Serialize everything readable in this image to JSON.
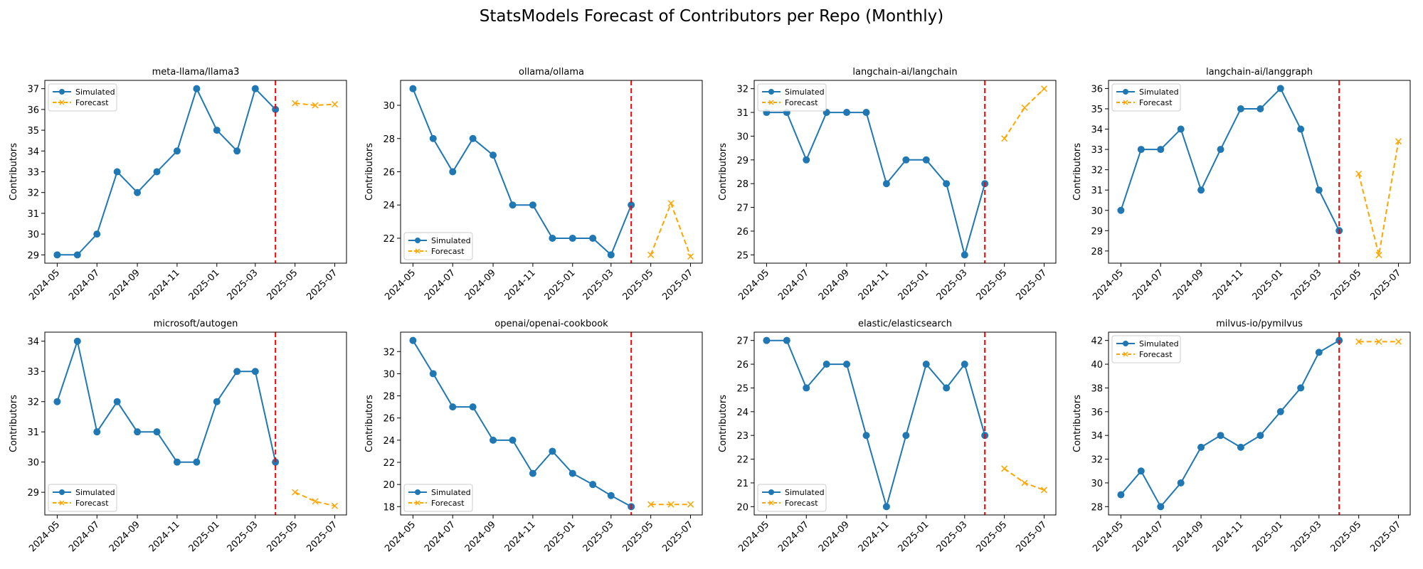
{
  "figure": {
    "title": "StatsModels Forecast of Contributors per Repo (Monthly)"
  },
  "chart_data": [
    {
      "type": "line",
      "title": "meta-llama/llama3",
      "ylabel": "Contributors",
      "ylim": [
        28.6,
        37.4
      ],
      "yticks": [
        29,
        30,
        31,
        32,
        33,
        34,
        35,
        36,
        37
      ],
      "legend_position": "upper-left",
      "series": [
        {
          "name": "Simulated",
          "color": "#1f77b4",
          "marker": "circle",
          "linestyle": "solid",
          "x": [
            "2024-05",
            "2024-06",
            "2024-07",
            "2024-08",
            "2024-09",
            "2024-10",
            "2024-11",
            "2024-12",
            "2025-01",
            "2025-02",
            "2025-03",
            "2025-04"
          ],
          "values": [
            29,
            29,
            30,
            33,
            32,
            33,
            34,
            37,
            35,
            34,
            37,
            36
          ]
        },
        {
          "name": "Forecast",
          "color": "#ffa500",
          "marker": "x",
          "linestyle": "dashed",
          "x": [
            "2025-05",
            "2025-06",
            "2025-07"
          ],
          "values": [
            36.3,
            36.2,
            36.25
          ]
        }
      ],
      "vline": {
        "x": "2025-04",
        "color": "#ff0000"
      }
    },
    {
      "type": "line",
      "title": "ollama/ollama",
      "ylabel": "Contributors",
      "ylim": [
        20.5,
        31.5
      ],
      "yticks": [
        22,
        24,
        26,
        28,
        30
      ],
      "legend_position": "lower-left",
      "series": [
        {
          "name": "Simulated",
          "color": "#1f77b4",
          "marker": "circle",
          "linestyle": "solid",
          "x": [
            "2024-05",
            "2024-06",
            "2024-07",
            "2024-08",
            "2024-09",
            "2024-10",
            "2024-11",
            "2024-12",
            "2025-01",
            "2025-02",
            "2025-03",
            "2025-04"
          ],
          "values": [
            31,
            28,
            26,
            28,
            27,
            24,
            24,
            22,
            22,
            22,
            21,
            24
          ]
        },
        {
          "name": "Forecast",
          "color": "#ffa500",
          "marker": "x",
          "linestyle": "dashed",
          "x": [
            "2025-05",
            "2025-06",
            "2025-07"
          ],
          "values": [
            21,
            24.1,
            20.9
          ]
        }
      ],
      "vline": {
        "x": "2025-04",
        "color": "#ff0000"
      }
    },
    {
      "type": "line",
      "title": "langchain-ai/langchain",
      "ylabel": "Contributors",
      "ylim": [
        24.65,
        32.35
      ],
      "yticks": [
        25,
        26,
        27,
        28,
        29,
        30,
        31,
        32
      ],
      "legend_position": "upper-left",
      "series": [
        {
          "name": "Simulated",
          "color": "#1f77b4",
          "marker": "circle",
          "linestyle": "solid",
          "x": [
            "2024-05",
            "2024-06",
            "2024-07",
            "2024-08",
            "2024-09",
            "2024-10",
            "2024-11",
            "2024-12",
            "2025-01",
            "2025-02",
            "2025-03",
            "2025-04"
          ],
          "values": [
            31,
            31,
            29,
            31,
            31,
            31,
            28,
            29,
            29,
            28,
            25,
            28
          ]
        },
        {
          "name": "Forecast",
          "color": "#ffa500",
          "marker": "x",
          "linestyle": "dashed",
          "x": [
            "2025-05",
            "2025-06",
            "2025-07"
          ],
          "values": [
            29.9,
            31.2,
            32
          ]
        }
      ],
      "vline": {
        "x": "2025-04",
        "color": "#ff0000"
      }
    },
    {
      "type": "line",
      "title": "langchain-ai/langgraph",
      "ylabel": "Contributors",
      "ylim": [
        27.4,
        36.4
      ],
      "yticks": [
        28,
        29,
        30,
        31,
        32,
        33,
        34,
        35,
        36
      ],
      "legend_position": "upper-left",
      "series": [
        {
          "name": "Simulated",
          "color": "#1f77b4",
          "marker": "circle",
          "linestyle": "solid",
          "x": [
            "2024-05",
            "2024-06",
            "2024-07",
            "2024-08",
            "2024-09",
            "2024-10",
            "2024-11",
            "2024-12",
            "2025-01",
            "2025-02",
            "2025-03",
            "2025-04"
          ],
          "values": [
            30,
            33,
            33,
            34,
            31,
            33,
            35,
            35,
            36,
            34,
            31,
            29
          ]
        },
        {
          "name": "Forecast",
          "color": "#ffa500",
          "marker": "x",
          "linestyle": "dashed",
          "x": [
            "2025-05",
            "2025-06",
            "2025-07"
          ],
          "values": [
            31.8,
            27.8,
            33.4
          ]
        }
      ],
      "vline": {
        "x": "2025-04",
        "color": "#ff0000"
      }
    },
    {
      "type": "line",
      "title": "microsoft/autogen",
      "ylabel": "Contributors",
      "ylim": [
        28.25,
        34.3
      ],
      "yticks": [
        29,
        30,
        31,
        32,
        33,
        34
      ],
      "legend_position": "lower-left",
      "series": [
        {
          "name": "Simulated",
          "color": "#1f77b4",
          "marker": "circle",
          "linestyle": "solid",
          "x": [
            "2024-05",
            "2024-06",
            "2024-07",
            "2024-08",
            "2024-09",
            "2024-10",
            "2024-11",
            "2024-12",
            "2025-01",
            "2025-02",
            "2025-03",
            "2025-04"
          ],
          "values": [
            32,
            34,
            31,
            32,
            31,
            31,
            30,
            30,
            32,
            33,
            33,
            30
          ]
        },
        {
          "name": "Forecast",
          "color": "#ffa500",
          "marker": "x",
          "linestyle": "dashed",
          "x": [
            "2025-05",
            "2025-06",
            "2025-07"
          ],
          "values": [
            29,
            28.7,
            28.55
          ]
        }
      ],
      "vline": {
        "x": "2025-04",
        "color": "#ff0000"
      }
    },
    {
      "type": "line",
      "title": "openai/openai-cookbook",
      "ylabel": "Contributors",
      "ylim": [
        17.25,
        33.75
      ],
      "yticks": [
        18,
        20,
        22,
        24,
        26,
        28,
        30,
        32
      ],
      "legend_position": "lower-left",
      "series": [
        {
          "name": "Simulated",
          "color": "#1f77b4",
          "marker": "circle",
          "linestyle": "solid",
          "x": [
            "2024-05",
            "2024-06",
            "2024-07",
            "2024-08",
            "2024-09",
            "2024-10",
            "2024-11",
            "2024-12",
            "2025-01",
            "2025-02",
            "2025-03",
            "2025-04"
          ],
          "values": [
            33,
            30,
            27,
            27,
            24,
            24,
            21,
            23,
            21,
            20,
            19,
            18
          ]
        },
        {
          "name": "Forecast",
          "color": "#ffa500",
          "marker": "x",
          "linestyle": "dashed",
          "x": [
            "2025-05",
            "2025-06",
            "2025-07"
          ],
          "values": [
            18.2,
            18.2,
            18.2
          ]
        }
      ],
      "vline": {
        "x": "2025-04",
        "color": "#ff0000"
      }
    },
    {
      "type": "line",
      "title": "elastic/elasticsearch",
      "ylabel": "Contributors",
      "ylim": [
        19.65,
        27.35
      ],
      "yticks": [
        20,
        21,
        22,
        23,
        24,
        25,
        26,
        27
      ],
      "legend_position": "lower-left",
      "series": [
        {
          "name": "Simulated",
          "color": "#1f77b4",
          "marker": "circle",
          "linestyle": "solid",
          "x": [
            "2024-05",
            "2024-06",
            "2024-07",
            "2024-08",
            "2024-09",
            "2024-10",
            "2024-11",
            "2024-12",
            "2025-01",
            "2025-02",
            "2025-03",
            "2025-04"
          ],
          "values": [
            27,
            27,
            25,
            26,
            26,
            23,
            20,
            23,
            26,
            25,
            26,
            23
          ]
        },
        {
          "name": "Forecast",
          "color": "#ffa500",
          "marker": "x",
          "linestyle": "dashed",
          "x": [
            "2025-05",
            "2025-06",
            "2025-07"
          ],
          "values": [
            21.6,
            21,
            20.7
          ]
        }
      ],
      "vline": {
        "x": "2025-04",
        "color": "#ff0000"
      }
    },
    {
      "type": "line",
      "title": "milvus-io/pymilvus",
      "ylabel": "Contributors",
      "ylim": [
        27.3,
        42.7
      ],
      "yticks": [
        28,
        30,
        32,
        34,
        36,
        38,
        40,
        42
      ],
      "legend_position": "upper-left",
      "series": [
        {
          "name": "Simulated",
          "color": "#1f77b4",
          "marker": "circle",
          "linestyle": "solid",
          "x": [
            "2024-05",
            "2024-06",
            "2024-07",
            "2024-08",
            "2024-09",
            "2024-10",
            "2024-11",
            "2024-12",
            "2025-01",
            "2025-02",
            "2025-03",
            "2025-04"
          ],
          "values": [
            29,
            31,
            28,
            30,
            33,
            34,
            33,
            34,
            36,
            38,
            41,
            42
          ]
        },
        {
          "name": "Forecast",
          "color": "#ffa500",
          "marker": "x",
          "linestyle": "dashed",
          "x": [
            "2025-05",
            "2025-06",
            "2025-07"
          ],
          "values": [
            41.9,
            41.9,
            41.9
          ]
        }
      ],
      "vline": {
        "x": "2025-04",
        "color": "#ff0000"
      }
    }
  ],
  "x_axis": {
    "ticks": [
      "2024-05",
      "2024-07",
      "2024-09",
      "2024-11",
      "2025-01",
      "2025-03",
      "2025-05",
      "2025-07"
    ],
    "range": [
      "2024-04-12",
      "2025-07-19"
    ],
    "tick_rotation_deg": 45
  }
}
